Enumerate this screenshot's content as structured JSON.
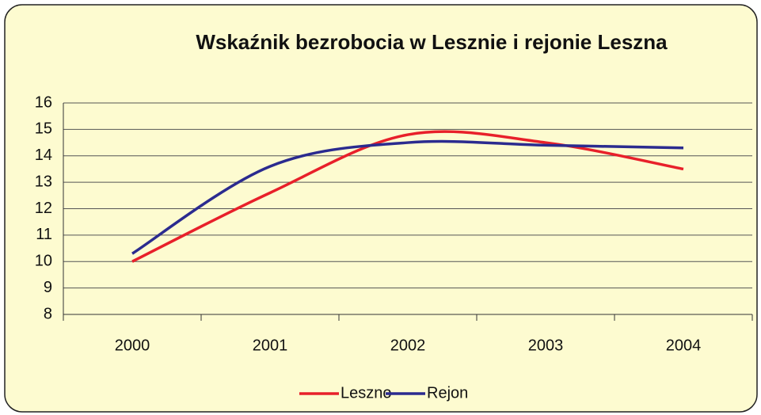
{
  "chart_data": {
    "type": "line",
    "title": "Wskaźnik bezrobocia w Lesznie i rejonie Leszna",
    "categories": [
      "2000",
      "2001",
      "2002",
      "2003",
      "2004"
    ],
    "series": [
      {
        "name": "Leszno",
        "color": "#e8202a",
        "values": [
          10.0,
          12.6,
          14.8,
          14.5,
          13.5
        ]
      },
      {
        "name": "Rejon",
        "color": "#2b2b8f",
        "values": [
          10.3,
          13.6,
          14.5,
          14.4,
          14.3
        ]
      }
    ],
    "ylim": [
      8,
      16
    ],
    "yticks": [
      8,
      9,
      10,
      11,
      12,
      13,
      14,
      15,
      16
    ],
    "grid": true,
    "legend": "bottom"
  }
}
